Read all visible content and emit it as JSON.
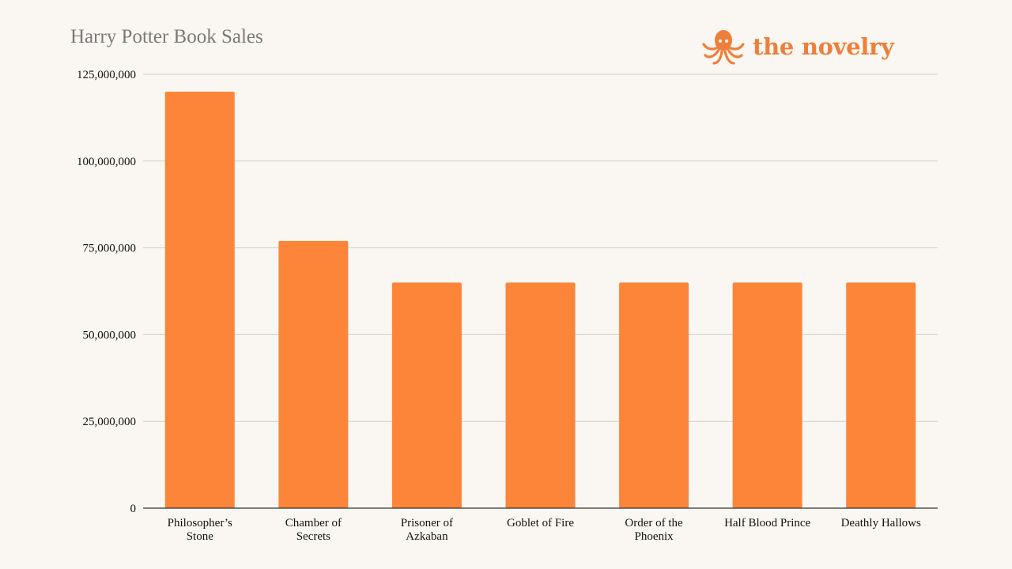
{
  "brand": {
    "name": "the novelry",
    "icon": "octopus-icon",
    "color": "#ee7f3a"
  },
  "chart_data": {
    "type": "bar",
    "title": "Harry Potter Book Sales",
    "xlabel": "",
    "ylabel": "",
    "categories": [
      [
        "Philosopher’s",
        "Stone"
      ],
      [
        "Chamber of",
        "Secrets"
      ],
      [
        "Prisoner of",
        "Azkaban"
      ],
      [
        "Goblet of Fire"
      ],
      [
        "Order of the",
        "Phoenix"
      ],
      [
        "Half Blood Prince"
      ],
      [
        "Deathly Hallows"
      ]
    ],
    "values": [
      120000000,
      77000000,
      65000000,
      65000000,
      65000000,
      65000000,
      65000000
    ],
    "ylim": [
      0,
      125000000
    ],
    "yticks": [
      0,
      25000000,
      50000000,
      75000000,
      100000000,
      125000000
    ],
    "ytick_labels": [
      "0",
      "25,000,000",
      "50,000,000",
      "75,000,000",
      "100,000,000",
      "125,000,000"
    ],
    "bar_color": "#fd853a",
    "grid": true,
    "legend": "none"
  }
}
